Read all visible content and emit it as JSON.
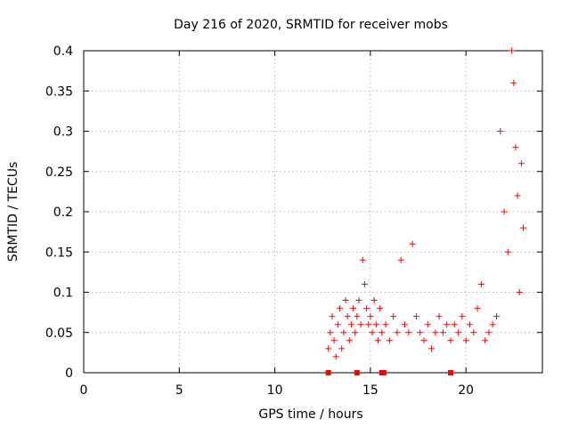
{
  "chart_data": {
    "type": "scatter",
    "title": "Day 216 of 2020, SRMTID for receiver mobs",
    "xlabel": "GPS time / hours",
    "ylabel": "SRMTID / TECUs",
    "xlim": [
      0,
      24
    ],
    "ylim": [
      0,
      0.4
    ],
    "xticks": [
      0,
      5,
      10,
      15,
      20
    ],
    "xtick_labels": [
      "0",
      "5",
      "10",
      "15",
      "20"
    ],
    "yticks": [
      0,
      0.05,
      0.1,
      0.15,
      0.2,
      0.25,
      0.3,
      0.35,
      0.4
    ],
    "ytick_labels": [
      "0",
      "0.05",
      "0.1",
      "0.15",
      "0.2",
      "0.25",
      "0.3",
      "0.35",
      "0.4"
    ],
    "grid": true,
    "marker": "+",
    "color": "#ff0000",
    "series": [
      {
        "name": "SRMTID",
        "points": [
          [
            12.8,
            0.03
          ],
          [
            12.9,
            0.05
          ],
          [
            13.0,
            0.07
          ],
          [
            13.1,
            0.04
          ],
          [
            13.2,
            0.02
          ],
          [
            13.3,
            0.06
          ],
          [
            13.4,
            0.08
          ],
          [
            13.5,
            0.03
          ],
          [
            13.6,
            0.05
          ],
          [
            13.7,
            0.09
          ],
          [
            13.8,
            0.07
          ],
          [
            13.9,
            0.04
          ],
          [
            14.0,
            0.06
          ],
          [
            14.1,
            0.08
          ],
          [
            14.2,
            0.05
          ],
          [
            14.3,
            0.07
          ],
          [
            14.4,
            0.09
          ],
          [
            14.5,
            0.06
          ],
          [
            14.6,
            0.14
          ],
          [
            14.7,
            0.11
          ],
          [
            14.8,
            0.08
          ],
          [
            14.9,
            0.06
          ],
          [
            15.0,
            0.07
          ],
          [
            15.1,
            0.05
          ],
          [
            15.2,
            0.09
          ],
          [
            15.3,
            0.06
          ],
          [
            15.4,
            0.04
          ],
          [
            15.5,
            0.08
          ],
          [
            15.6,
            0.05
          ],
          [
            15.8,
            0.06
          ],
          [
            16.0,
            0.04
          ],
          [
            16.2,
            0.07
          ],
          [
            16.4,
            0.05
          ],
          [
            16.6,
            0.14
          ],
          [
            16.8,
            0.06
          ],
          [
            17.0,
            0.05
          ],
          [
            17.2,
            0.16
          ],
          [
            17.4,
            0.07
          ],
          [
            17.6,
            0.05
          ],
          [
            17.8,
            0.04
          ],
          [
            18.0,
            0.06
          ],
          [
            18.2,
            0.03
          ],
          [
            18.4,
            0.05
          ],
          [
            18.6,
            0.07
          ],
          [
            18.8,
            0.05
          ],
          [
            19.0,
            0.06
          ],
          [
            19.2,
            0.04
          ],
          [
            19.4,
            0.06
          ],
          [
            19.6,
            0.05
          ],
          [
            19.8,
            0.07
          ],
          [
            20.0,
            0.04
          ],
          [
            20.2,
            0.06
          ],
          [
            20.4,
            0.05
          ],
          [
            20.6,
            0.08
          ],
          [
            20.8,
            0.11
          ],
          [
            21.0,
            0.04
          ],
          [
            21.2,
            0.05
          ],
          [
            21.4,
            0.06
          ],
          [
            21.6,
            0.07
          ],
          [
            21.8,
            0.3
          ],
          [
            22.0,
            0.2
          ],
          [
            22.2,
            0.15
          ],
          [
            22.4,
            0.4
          ],
          [
            22.5,
            0.36
          ],
          [
            22.6,
            0.28
          ],
          [
            22.7,
            0.22
          ],
          [
            22.8,
            0.1
          ],
          [
            22.9,
            0.26
          ],
          [
            23.0,
            0.18
          ]
        ]
      }
    ],
    "baseline_markers": [
      12.8,
      14.3,
      15.6,
      15.7,
      19.2
    ]
  }
}
